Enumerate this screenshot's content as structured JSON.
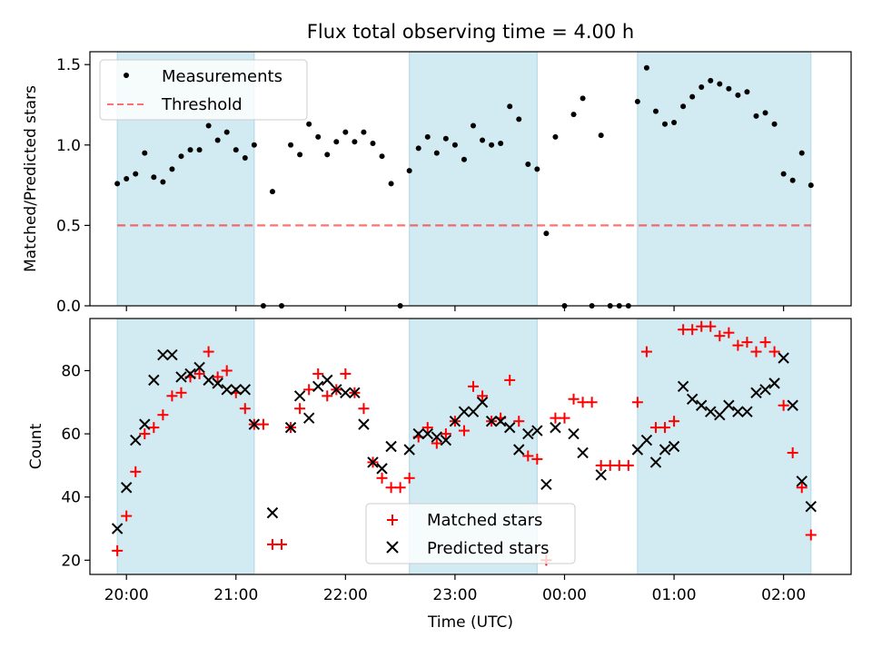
{
  "title": "Flux total observing time = 4.00 h",
  "colors": {
    "shade": "#add8e6",
    "measurement": "#000000",
    "threshold": "#ff0000",
    "matched": "#ff0000",
    "predicted": "#000000"
  },
  "chart_data": [
    {
      "type": "scatter",
      "ylabel": "Matched/Predicted stars",
      "ylim": [
        0,
        1.58
      ],
      "yticks": [
        0.0,
        0.5,
        1.0,
        1.5
      ],
      "ytick_labels": [
        "0.0",
        "0.5",
        "1.0",
        "1.5"
      ],
      "xlim": [
        "19:40",
        "02:37"
      ],
      "shaded_intervals": [
        [
          "19:55",
          "21:10"
        ],
        [
          "22:35",
          "23:45"
        ],
        [
          "00:40",
          "02:15"
        ]
      ],
      "legend": {
        "placement": "upper left",
        "entries": [
          "Measurements",
          "Threshold"
        ]
      },
      "threshold": {
        "name": "Threshold",
        "value": 0.5,
        "x": [
          "19:55",
          "02:15"
        ]
      },
      "series": [
        {
          "name": "Measurements",
          "marker": "dot",
          "points": [
            [
              "19:55",
              0.76
            ],
            [
              "20:00",
              0.79
            ],
            [
              "20:05",
              0.82
            ],
            [
              "20:10",
              0.95
            ],
            [
              "20:15",
              0.8
            ],
            [
              "20:20",
              0.77
            ],
            [
              "20:25",
              0.85
            ],
            [
              "20:30",
              0.93
            ],
            [
              "20:35",
              0.97
            ],
            [
              "20:40",
              0.97
            ],
            [
              "20:45",
              1.12
            ],
            [
              "20:50",
              1.03
            ],
            [
              "20:55",
              1.08
            ],
            [
              "21:00",
              0.97
            ],
            [
              "21:05",
              0.92
            ],
            [
              "21:10",
              1.0
            ],
            [
              "21:15",
              0.0
            ],
            [
              "21:20",
              0.71
            ],
            [
              "21:25",
              0.0
            ],
            [
              "21:30",
              1.0
            ],
            [
              "21:35",
              0.94
            ],
            [
              "21:40",
              1.13
            ],
            [
              "21:45",
              1.05
            ],
            [
              "21:50",
              0.94
            ],
            [
              "21:55",
              1.02
            ],
            [
              "22:00",
              1.08
            ],
            [
              "22:05",
              1.02
            ],
            [
              "22:10",
              1.08
            ],
            [
              "22:15",
              1.01
            ],
            [
              "22:20",
              0.93
            ],
            [
              "22:25",
              0.76
            ],
            [
              "22:30",
              0.0
            ],
            [
              "22:35",
              0.84
            ],
            [
              "22:40",
              0.98
            ],
            [
              "22:45",
              1.05
            ],
            [
              "22:50",
              0.95
            ],
            [
              "22:55",
              1.04
            ],
            [
              "23:00",
              1.0
            ],
            [
              "23:05",
              0.91
            ],
            [
              "23:10",
              1.12
            ],
            [
              "23:15",
              1.03
            ],
            [
              "23:20",
              1.0
            ],
            [
              "23:25",
              1.01
            ],
            [
              "23:30",
              1.24
            ],
            [
              "23:35",
              1.16
            ],
            [
              "23:40",
              0.88
            ],
            [
              "23:45",
              0.85
            ],
            [
              "23:50",
              0.45
            ],
            [
              "23:55",
              1.05
            ],
            [
              "00:00",
              0.0
            ],
            [
              "00:05",
              1.19
            ],
            [
              "00:10",
              1.29
            ],
            [
              "00:15",
              0.0
            ],
            [
              "00:20",
              1.06
            ],
            [
              "00:25",
              0.0
            ],
            [
              "00:30",
              0.0
            ],
            [
              "00:35",
              0.0
            ],
            [
              "00:40",
              1.27
            ],
            [
              "00:45",
              1.48
            ],
            [
              "00:50",
              1.21
            ],
            [
              "00:55",
              1.13
            ],
            [
              "01:00",
              1.14
            ],
            [
              "01:05",
              1.24
            ],
            [
              "01:10",
              1.3
            ],
            [
              "01:15",
              1.36
            ],
            [
              "01:20",
              1.4
            ],
            [
              "01:25",
              1.38
            ],
            [
              "01:30",
              1.35
            ],
            [
              "01:35",
              1.31
            ],
            [
              "01:40",
              1.33
            ],
            [
              "01:45",
              1.18
            ],
            [
              "01:50",
              1.2
            ],
            [
              "01:55",
              1.13
            ],
            [
              "02:00",
              0.82
            ],
            [
              "02:05",
              0.78
            ],
            [
              "02:10",
              0.95
            ],
            [
              "02:15",
              0.75
            ]
          ]
        }
      ]
    },
    {
      "type": "scatter",
      "xlabel": "Time (UTC)",
      "ylabel": "Count",
      "ylim": [
        15.5,
        96.5
      ],
      "yticks": [
        20,
        40,
        60,
        80
      ],
      "ytick_labels": [
        "20",
        "40",
        "60",
        "80"
      ],
      "xlim": [
        "19:40",
        "02:37"
      ],
      "xticks": [
        "20:00",
        "21:00",
        "22:00",
        "23:00",
        "00:00",
        "01:00",
        "02:00"
      ],
      "xtick_labels": [
        "20:00",
        "21:00",
        "22:00",
        "23:00",
        "00:00",
        "01:00",
        "02:00"
      ],
      "shaded_intervals": [
        [
          "19:55",
          "21:10"
        ],
        [
          "22:35",
          "23:45"
        ],
        [
          "00:40",
          "02:15"
        ]
      ],
      "legend": {
        "placement": "lower center",
        "entries": [
          "Matched stars",
          "Predicted stars"
        ]
      },
      "series": [
        {
          "name": "Matched stars",
          "marker": "plus",
          "points": [
            [
              "19:55",
              23
            ],
            [
              "20:00",
              34
            ],
            [
              "20:05",
              48
            ],
            [
              "20:10",
              60
            ],
            [
              "20:15",
              62
            ],
            [
              "20:20",
              66
            ],
            [
              "20:25",
              72
            ],
            [
              "20:30",
              73
            ],
            [
              "20:35",
              78
            ],
            [
              "20:40",
              79
            ],
            [
              "20:45",
              86
            ],
            [
              "20:50",
              78
            ],
            [
              "20:55",
              80
            ],
            [
              "21:00",
              73
            ],
            [
              "21:05",
              68
            ],
            [
              "21:10",
              63
            ],
            [
              "21:15",
              63
            ],
            [
              "21:20",
              25
            ],
            [
              "21:25",
              25
            ],
            [
              "21:30",
              62
            ],
            [
              "21:35",
              68
            ],
            [
              "21:40",
              74
            ],
            [
              "21:45",
              79
            ],
            [
              "21:50",
              72
            ],
            [
              "21:55",
              74
            ],
            [
              "22:00",
              79
            ],
            [
              "22:05",
              73
            ],
            [
              "22:10",
              68
            ],
            [
              "22:15",
              51
            ],
            [
              "22:20",
              46
            ],
            [
              "22:25",
              43
            ],
            [
              "22:30",
              43
            ],
            [
              "22:35",
              46
            ],
            [
              "22:40",
              59
            ],
            [
              "22:45",
              62
            ],
            [
              "22:50",
              57
            ],
            [
              "22:55",
              60
            ],
            [
              "23:00",
              64
            ],
            [
              "23:05",
              61
            ],
            [
              "23:10",
              75
            ],
            [
              "23:15",
              72
            ],
            [
              "23:20",
              64
            ],
            [
              "23:25",
              65
            ],
            [
              "23:30",
              77
            ],
            [
              "23:35",
              64
            ],
            [
              "23:40",
              53
            ],
            [
              "23:45",
              52
            ],
            [
              "23:50",
              20
            ],
            [
              "23:55",
              65
            ],
            [
              "00:00",
              65
            ],
            [
              "00:05",
              71
            ],
            [
              "00:10",
              70
            ],
            [
              "00:15",
              70
            ],
            [
              "00:20",
              50
            ],
            [
              "00:25",
              50
            ],
            [
              "00:30",
              50
            ],
            [
              "00:35",
              50
            ],
            [
              "00:40",
              70
            ],
            [
              "00:45",
              86
            ],
            [
              "00:50",
              62
            ],
            [
              "00:55",
              62
            ],
            [
              "01:00",
              64
            ],
            [
              "01:05",
              93
            ],
            [
              "01:10",
              93
            ],
            [
              "01:15",
              94
            ],
            [
              "01:20",
              94
            ],
            [
              "01:25",
              91
            ],
            [
              "01:30",
              92
            ],
            [
              "01:35",
              88
            ],
            [
              "01:40",
              89
            ],
            [
              "01:45",
              86
            ],
            [
              "01:50",
              89
            ],
            [
              "01:55",
              86
            ],
            [
              "02:00",
              69
            ],
            [
              "02:05",
              54
            ],
            [
              "02:10",
              43
            ],
            [
              "02:15",
              28
            ]
          ]
        },
        {
          "name": "Predicted stars",
          "marker": "x",
          "points": [
            [
              "19:55",
              30
            ],
            [
              "20:00",
              43
            ],
            [
              "20:05",
              58
            ],
            [
              "20:10",
              63
            ],
            [
              "20:15",
              77
            ],
            [
              "20:20",
              85
            ],
            [
              "20:25",
              85
            ],
            [
              "20:30",
              78
            ],
            [
              "20:35",
              79
            ],
            [
              "20:40",
              81
            ],
            [
              "20:45",
              77
            ],
            [
              "20:50",
              76
            ],
            [
              "20:55",
              74
            ],
            [
              "21:00",
              74
            ],
            [
              "21:05",
              74
            ],
            [
              "21:10",
              63
            ],
            [
              "21:20",
              35
            ],
            [
              "21:30",
              62
            ],
            [
              "21:35",
              72
            ],
            [
              "21:40",
              65
            ],
            [
              "21:45",
              75
            ],
            [
              "21:50",
              77
            ],
            [
              "21:55",
              74
            ],
            [
              "22:00",
              73
            ],
            [
              "22:05",
              73
            ],
            [
              "22:10",
              63
            ],
            [
              "22:15",
              51
            ],
            [
              "22:20",
              49
            ],
            [
              "22:25",
              56
            ],
            [
              "22:35",
              55
            ],
            [
              "22:40",
              60
            ],
            [
              "22:45",
              60
            ],
            [
              "22:50",
              59
            ],
            [
              "22:55",
              58
            ],
            [
              "23:00",
              64
            ],
            [
              "23:05",
              67
            ],
            [
              "23:10",
              67
            ],
            [
              "23:15",
              70
            ],
            [
              "23:20",
              64
            ],
            [
              "23:25",
              64
            ],
            [
              "23:30",
              62
            ],
            [
              "23:35",
              55
            ],
            [
              "23:40",
              60
            ],
            [
              "23:45",
              61
            ],
            [
              "23:50",
              44
            ],
            [
              "23:55",
              62
            ],
            [
              "00:05",
              60
            ],
            [
              "00:10",
              54
            ],
            [
              "00:20",
              47
            ],
            [
              "00:40",
              55
            ],
            [
              "00:45",
              58
            ],
            [
              "00:50",
              51
            ],
            [
              "00:55",
              55
            ],
            [
              "01:00",
              56
            ],
            [
              "01:05",
              75
            ],
            [
              "01:10",
              71
            ],
            [
              "01:15",
              69
            ],
            [
              "01:20",
              67
            ],
            [
              "01:25",
              66
            ],
            [
              "01:30",
              69
            ],
            [
              "01:35",
              67
            ],
            [
              "01:40",
              67
            ],
            [
              "01:45",
              73
            ],
            [
              "01:50",
              74
            ],
            [
              "01:55",
              76
            ],
            [
              "02:00",
              84
            ],
            [
              "02:05",
              69
            ],
            [
              "02:10",
              45
            ],
            [
              "02:15",
              37
            ]
          ]
        }
      ]
    }
  ]
}
